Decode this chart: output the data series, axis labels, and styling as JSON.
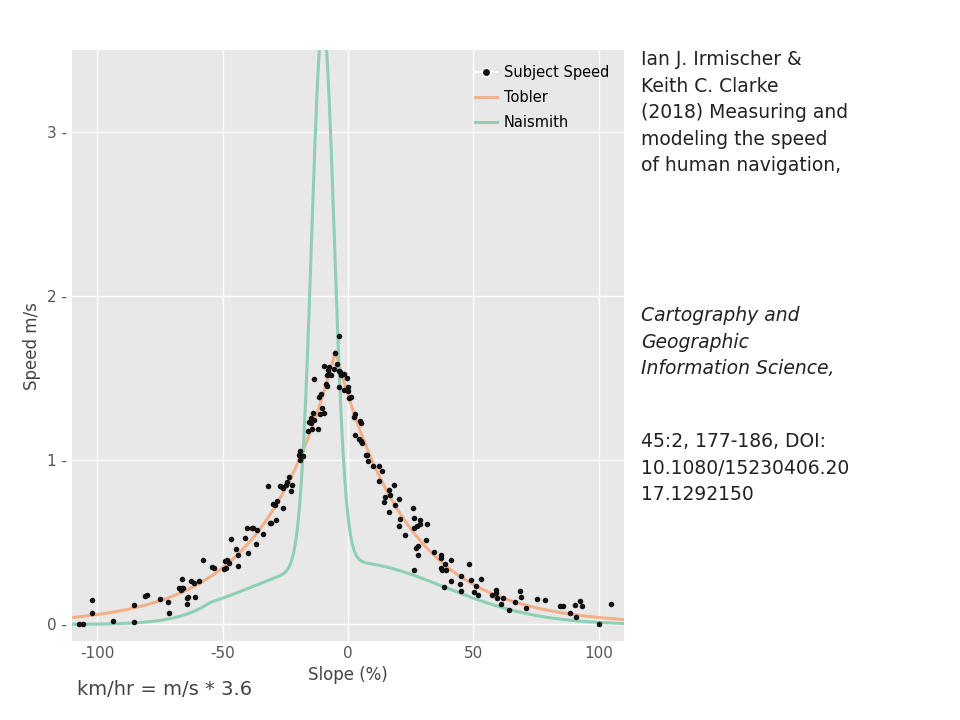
{
  "background_color": "#ffffff",
  "plot_bg_color": "#e8e8e8",
  "xlabel": "Slope (%)",
  "ylabel": "Speed m/s",
  "xlim": [
    -110,
    110
  ],
  "ylim": [
    -0.1,
    3.5
  ],
  "xticks": [
    -100,
    -50,
    0,
    50,
    100
  ],
  "yticks": [
    0,
    1,
    2,
    3
  ],
  "tobler_color": "#f5b08a",
  "naismith_color": "#8ecfb5",
  "scatter_color": "#111111",
  "bottom_text": "km/hr = m/s * 3.6",
  "legend_labels": [
    "Subject Speed",
    "Tobler",
    "Naismith"
  ],
  "anno_normal1": "Ian J. Irmischer &\nKeith C. Clarke\n(2018) Measuring and\nmodeling the speed\nof human navigation,",
  "anno_italic": "Cartography and\nGeographic\nInformation Science,",
  "anno_normal2": "45:2, 177-186, DOI:\n10.1080/15230406.20\n17.1292150"
}
